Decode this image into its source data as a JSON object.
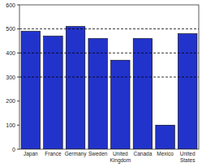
{
  "chart_data": {
    "type": "bar",
    "categories": [
      "Japan",
      "France",
      "Germany",
      "Sweden",
      "United\nKingdom",
      "Canada",
      "Mexico",
      "United\nStates"
    ],
    "values": [
      490,
      470,
      510,
      460,
      370,
      460,
      100,
      480
    ],
    "color": "#2233cc",
    "ylim": [
      0,
      600
    ],
    "yticks": [
      0,
      100,
      200,
      300,
      400,
      500,
      600
    ],
    "reference_lines": [
      500,
      400,
      300
    ],
    "grid": false
  }
}
